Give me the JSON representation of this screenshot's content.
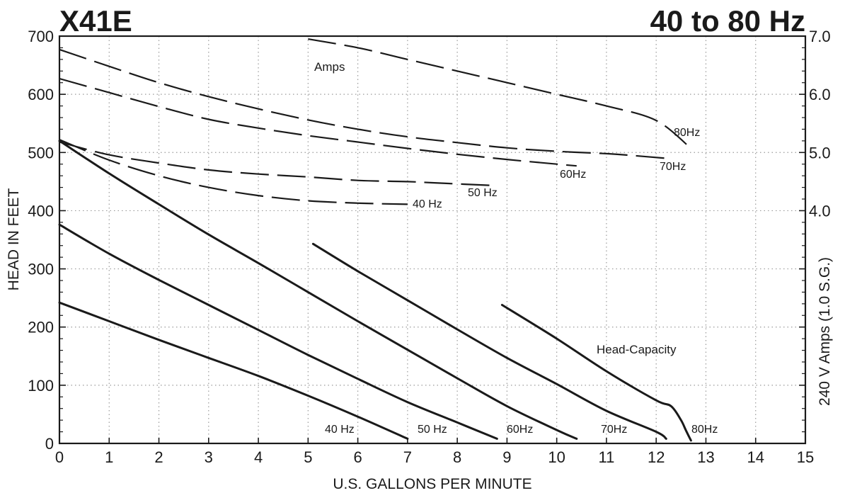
{
  "chart_data": {
    "type": "line",
    "title_left": "X41E",
    "title_right": "40 to 80 Hz",
    "xlabel": "U.S. GALLONS PER MINUTE",
    "ylabel_left": "HEAD IN FEET",
    "ylabel_right": "240 V Amps (1.0 S.G.)",
    "xlim": [
      0,
      15
    ],
    "ylim_left": [
      0,
      700
    ],
    "ylim_right": [
      0,
      7.0
    ],
    "x_ticks": [
      "0",
      "1",
      "2",
      "3",
      "4",
      "5",
      "6",
      "7",
      "8",
      "9",
      "10",
      "11",
      "12",
      "13",
      "14",
      "15"
    ],
    "y_ticks_left": [
      "0",
      "100",
      "200",
      "300",
      "400",
      "500",
      "600",
      "700"
    ],
    "y_ticks_right": [
      "4.0",
      "5.0",
      "6.0",
      "7.0"
    ],
    "grid": true,
    "annotations": {
      "amps": "Amps",
      "head_capacity": "Head-Capacity"
    },
    "head_series": [
      {
        "name": "40 Hz",
        "points": [
          [
            0,
            242
          ],
          [
            1,
            210
          ],
          [
            2,
            178
          ],
          [
            3,
            147
          ],
          [
            4,
            116
          ],
          [
            5,
            82
          ],
          [
            6,
            46
          ],
          [
            7,
            8
          ]
        ]
      },
      {
        "name": "50 Hz",
        "points": [
          [
            0,
            376
          ],
          [
            1,
            326
          ],
          [
            2,
            281
          ],
          [
            3,
            238
          ],
          [
            4,
            195
          ],
          [
            5,
            152
          ],
          [
            6,
            111
          ],
          [
            7,
            71
          ],
          [
            8,
            36
          ],
          [
            8.8,
            8
          ]
        ]
      },
      {
        "name": "60Hz",
        "points": [
          [
            0,
            520
          ],
          [
            1,
            464
          ],
          [
            2,
            411
          ],
          [
            3,
            359
          ],
          [
            4,
            310
          ],
          [
            5,
            260
          ],
          [
            6,
            210
          ],
          [
            7,
            161
          ],
          [
            8,
            112
          ],
          [
            9,
            64
          ],
          [
            10,
            23
          ],
          [
            10.4,
            8
          ]
        ]
      },
      {
        "name": "70Hz",
        "points": [
          [
            5.1,
            343
          ],
          [
            6,
            296
          ],
          [
            7,
            246
          ],
          [
            8,
            196
          ],
          [
            9,
            147
          ],
          [
            10,
            102
          ],
          [
            11,
            56
          ],
          [
            12,
            20
          ],
          [
            12.2,
            8
          ]
        ]
      },
      {
        "name": "80Hz",
        "points": [
          [
            8.9,
            238
          ],
          [
            10,
            180
          ],
          [
            11,
            124
          ],
          [
            12,
            74
          ],
          [
            12.3,
            64
          ],
          [
            12.5,
            40
          ],
          [
            12.6,
            22
          ],
          [
            12.7,
            5
          ]
        ]
      }
    ],
    "amps_series": [
      {
        "name": "40 Hz",
        "points": [
          [
            0,
            5.22
          ],
          [
            1,
            4.87
          ],
          [
            2,
            4.6
          ],
          [
            3,
            4.4
          ],
          [
            4,
            4.26
          ],
          [
            5,
            4.17
          ],
          [
            6,
            4.13
          ],
          [
            7,
            4.11
          ]
        ]
      },
      {
        "name": "50 Hz",
        "points": [
          [
            0,
            5.18
          ],
          [
            1,
            4.96
          ],
          [
            2,
            4.82
          ],
          [
            3,
            4.7
          ],
          [
            4,
            4.63
          ],
          [
            5,
            4.58
          ],
          [
            6,
            4.52
          ],
          [
            7,
            4.5
          ],
          [
            7.5,
            4.48
          ],
          [
            8.8,
            4.43
          ]
        ]
      },
      {
        "name": "60Hz",
        "points": [
          [
            0,
            6.27
          ],
          [
            1,
            6.03
          ],
          [
            2,
            5.79
          ],
          [
            3,
            5.57
          ],
          [
            4,
            5.42
          ],
          [
            5,
            5.29
          ],
          [
            6,
            5.18
          ],
          [
            7,
            5.07
          ],
          [
            8,
            4.97
          ],
          [
            9,
            4.88
          ],
          [
            10,
            4.8
          ],
          [
            10.4,
            4.77
          ]
        ]
      },
      {
        "name": "70Hz",
        "points": [
          [
            0,
            6.77
          ],
          [
            1,
            6.48
          ],
          [
            2,
            6.2
          ],
          [
            3,
            5.96
          ],
          [
            4,
            5.75
          ],
          [
            5,
            5.56
          ],
          [
            6,
            5.4
          ],
          [
            7,
            5.27
          ],
          [
            8,
            5.17
          ],
          [
            9,
            5.08
          ],
          [
            10,
            5.02
          ],
          [
            11,
            4.98
          ],
          [
            11.5,
            4.95
          ],
          [
            12.2,
            4.9
          ]
        ]
      },
      {
        "name": "80Hz",
        "points": [
          [
            5,
            6.95
          ],
          [
            6,
            6.8
          ],
          [
            7,
            6.6
          ],
          [
            8,
            6.4
          ],
          [
            9,
            6.2
          ],
          [
            10,
            6.0
          ],
          [
            11,
            5.8
          ],
          [
            12,
            5.55
          ],
          [
            12.7,
            5.07
          ]
        ]
      }
    ]
  }
}
